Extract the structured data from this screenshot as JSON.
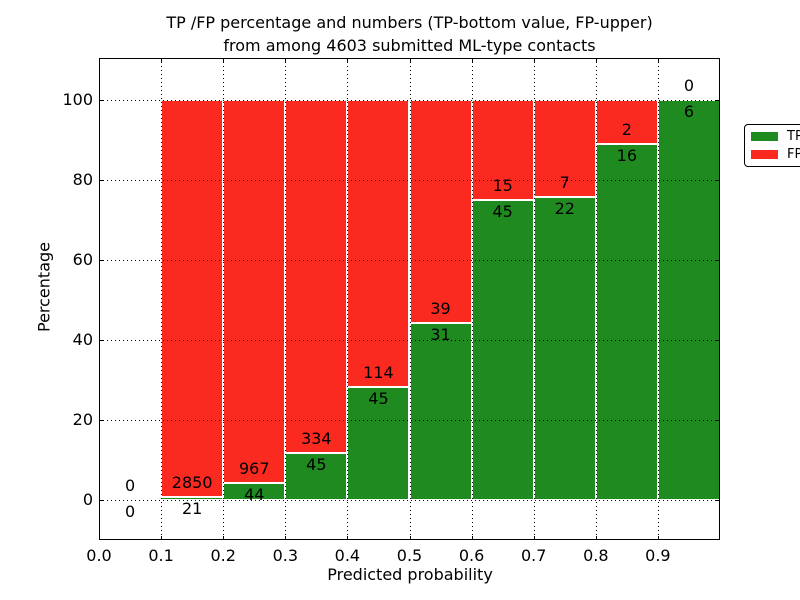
{
  "title": {
    "line1": "TP /FP percentage and numbers (TP-bottom value, FP-upper)",
    "line2": "from among 4603 submitted ML-type contacts"
  },
  "axes": {
    "xlabel": "Predicted probability",
    "ylabel": "Percentage"
  },
  "legend": {
    "position": "upper right",
    "items": [
      {
        "label": "TP",
        "color": "#1f8a1f"
      },
      {
        "label": "FP",
        "color": "#fa2a20"
      }
    ]
  },
  "chart_data": {
    "type": "bar",
    "stacked": true,
    "normalized": "each bin stacked to 100%",
    "title": "TP /FP percentage and numbers (TP-bottom value, FP-upper) from among 4603 submitted ML-type contacts",
    "xlabel": "Predicted probability",
    "ylabel": "Percentage",
    "bins": [
      "0.0-0.1",
      "0.1-0.2",
      "0.2-0.3",
      "0.3-0.4",
      "0.4-0.5",
      "0.5-0.6",
      "0.6-0.7",
      "0.7-0.8",
      "0.8-0.9",
      "0.9-1.0"
    ],
    "series": [
      {
        "name": "TP",
        "color": "#1f8a1f",
        "counts": [
          0,
          21,
          44,
          45,
          45,
          31,
          45,
          22,
          16,
          6
        ]
      },
      {
        "name": "FP",
        "color": "#fa2a20",
        "counts": [
          0,
          2850,
          967,
          334,
          114,
          39,
          15,
          7,
          2,
          0
        ]
      }
    ],
    "tp_percent_per_bin": [
      0,
      0.73,
      4.35,
      11.87,
      28.3,
      44.29,
      75.0,
      75.86,
      88.89,
      100.0
    ],
    "total_contacts": 4603,
    "x_tick_labels": [
      "0.0",
      "0.1",
      "0.2",
      "0.3",
      "0.4",
      "0.5",
      "0.6",
      "0.7",
      "0.8",
      "0.9"
    ],
    "y_ticks": [
      0,
      20,
      40,
      60,
      80,
      100
    ],
    "xlim": [
      0.0,
      1.0
    ],
    "ylim": [
      -10,
      110.5
    ],
    "grid": "dotted, drawn above bars",
    "legend_position": "upper right"
  }
}
